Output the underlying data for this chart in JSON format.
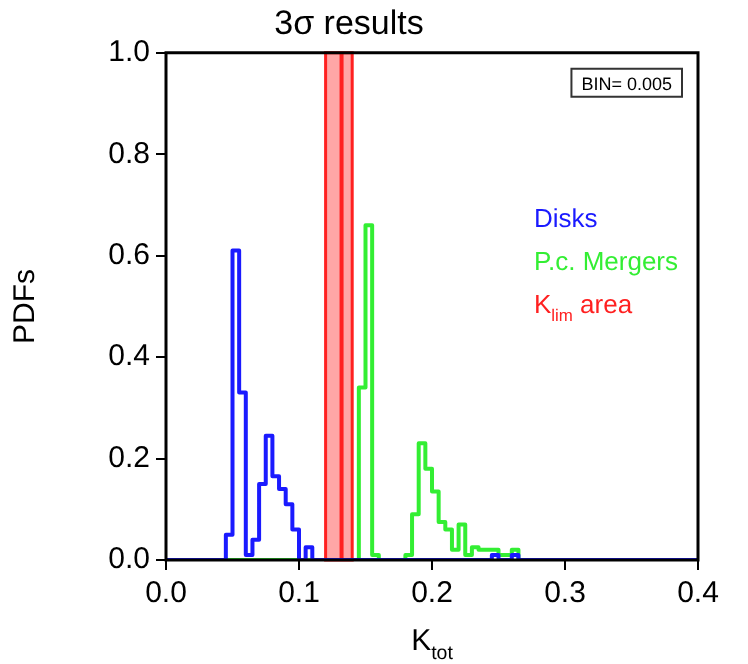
{
  "chart_data": {
    "type": "histogram",
    "title": "3σ results",
    "xlabel": "K$_{tot}$",
    "ylabel": "PDFs",
    "bins": [
      0,
      0.005,
      0.01,
      0.015,
      0.02,
      0.025,
      0.03,
      0.035,
      0.04,
      0.045,
      0.05,
      0.055,
      0.06,
      0.065,
      0.07,
      0.075,
      0.08,
      0.085,
      0.09,
      0.095,
      0.1,
      0.105,
      0.11,
      0.115,
      0.12,
      0.125,
      0.13,
      0.135,
      0.14,
      0.145,
      0.15,
      0.155,
      0.16,
      0.165,
      0.17,
      0.175,
      0.18,
      0.185,
      0.19,
      0.195,
      0.2,
      0.205,
      0.21,
      0.215,
      0.22,
      0.225,
      0.23,
      0.235,
      0.24,
      0.245,
      0.25,
      0.255,
      0.26,
      0.265,
      0.27,
      0.275,
      0.28,
      0.285,
      0.29,
      0.295,
      0.3,
      0.305,
      0.31,
      0.315,
      0.32,
      0.325,
      0.33,
      0.335,
      0.34,
      0.345,
      0.35,
      0.355,
      0.36,
      0.365,
      0.37,
      0.375,
      0.38,
      0.385,
      0.39,
      0.395,
      0.4
    ],
    "series": [
      {
        "name": "Disks",
        "color": "#1a1aff",
        "values": [
          0,
          0,
          0,
          0,
          0,
          0,
          0,
          0,
          0,
          0.05,
          0.61,
          0.33,
          0.01,
          0.04,
          0.15,
          0.245,
          0.165,
          0.14,
          0.11,
          0.06,
          0,
          0.025,
          0,
          0,
          0,
          0,
          0,
          0,
          0,
          0,
          0,
          0,
          0,
          0,
          0,
          0,
          0,
          0,
          0,
          0,
          0,
          0,
          0,
          0,
          0,
          0,
          0,
          0,
          0,
          0.01,
          0,
          0,
          0.01,
          0,
          0,
          0,
          0,
          0,
          0,
          0,
          0,
          0,
          0,
          0,
          0,
          0,
          0,
          0,
          0,
          0,
          0,
          0,
          0,
          0,
          0,
          0,
          0,
          0,
          0,
          0
        ]
      },
      {
        "name": "P.c. Mergers",
        "color": "#33ee33",
        "values": [
          0,
          0,
          0,
          0,
          0,
          0,
          0,
          0,
          0,
          0,
          0,
          0,
          0,
          0,
          0,
          0,
          0,
          0,
          0,
          0,
          0,
          0,
          0,
          0,
          0,
          0,
          0,
          0,
          0,
          0.34,
          0.66,
          0.01,
          0,
          0,
          0,
          0,
          0.01,
          0.09,
          0.23,
          0.18,
          0.135,
          0.075,
          0.06,
          0.02,
          0.07,
          0.01,
          0.025,
          0.02,
          0.02,
          0.02,
          0.01,
          0.01,
          0.02,
          0,
          0,
          0,
          0,
          0,
          0,
          0,
          0,
          0,
          0,
          0,
          0,
          0,
          0,
          0,
          0,
          0,
          0,
          0,
          0,
          0,
          0,
          0,
          0,
          0,
          0,
          0
        ]
      }
    ],
    "bands": [
      {
        "axis": "x",
        "from": 0.12,
        "to": 0.14,
        "label": "K$_{lim}$ area",
        "color": "#ff2020"
      }
    ],
    "ref_lines": [
      {
        "axis": "x",
        "value": 0.132,
        "color": "#ff2020"
      }
    ],
    "annotations": [
      "BIN= 0.005"
    ],
    "xlim": [
      0,
      0.4
    ],
    "xticks": [
      {
        "value": 0,
        "label": "0.0"
      },
      0.1,
      0.2,
      0.3,
      0.4
    ],
    "ylim": [
      0,
      1
    ],
    "yticks": [
      {
        "value": 0,
        "label": "0.0"
      },
      0.2,
      0.4,
      0.6,
      0.8,
      {
        "value": 1,
        "label": "1.0"
      }
    ],
    "grid": false,
    "legend": "top right"
  }
}
